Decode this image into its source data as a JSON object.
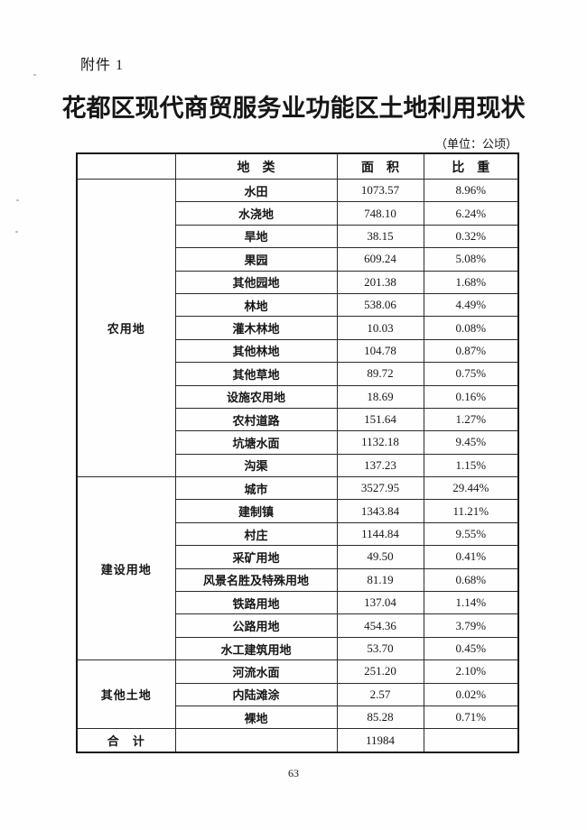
{
  "page": {
    "attachment_label": "附件 1",
    "title": "花都区现代商贸服务业功能区土地利用现状",
    "unit_note": "（单位：公顷）",
    "page_number": "63"
  },
  "table": {
    "header": {
      "corner": "",
      "category": "地　类",
      "area": "面　积",
      "share": "比　重"
    },
    "groups": [
      {
        "name": "农用地",
        "rows": [
          {
            "category": "水田",
            "area": "1073.57",
            "share": "8.96%"
          },
          {
            "category": "水浇地",
            "area": "748.10",
            "share": "6.24%"
          },
          {
            "category": "旱地",
            "area": "38.15",
            "share": "0.32%"
          },
          {
            "category": "果园",
            "area": "609.24",
            "share": "5.08%"
          },
          {
            "category": "其他园地",
            "area": "201.38",
            "share": "1.68%"
          },
          {
            "category": "林地",
            "area": "538.06",
            "share": "4.49%"
          },
          {
            "category": "灌木林地",
            "area": "10.03",
            "share": "0.08%"
          },
          {
            "category": "其他林地",
            "area": "104.78",
            "share": "0.87%"
          },
          {
            "category": "其他草地",
            "area": "89.72",
            "share": "0.75%"
          },
          {
            "category": "设施农用地",
            "area": "18.69",
            "share": "0.16%"
          },
          {
            "category": "农村道路",
            "area": "151.64",
            "share": "1.27%"
          },
          {
            "category": "坑塘水面",
            "area": "1132.18",
            "share": "9.45%"
          },
          {
            "category": "沟渠",
            "area": "137.23",
            "share": "1.15%"
          }
        ]
      },
      {
        "name": "建设用地",
        "rows": [
          {
            "category": "城市",
            "area": "3527.95",
            "share": "29.44%"
          },
          {
            "category": "建制镇",
            "area": "1343.84",
            "share": "11.21%"
          },
          {
            "category": "村庄",
            "area": "1144.84",
            "share": "9.55%"
          },
          {
            "category": "采矿用地",
            "area": "49.50",
            "share": "0.41%"
          },
          {
            "category": "风景名胜及特殊用地",
            "area": "81.19",
            "share": "0.68%"
          },
          {
            "category": "铁路用地",
            "area": "137.04",
            "share": "1.14%"
          },
          {
            "category": "公路用地",
            "area": "454.36",
            "share": "3.79%"
          },
          {
            "category": "水工建筑用地",
            "area": "53.70",
            "share": "0.45%"
          }
        ]
      },
      {
        "name": "其他土地",
        "rows": [
          {
            "category": "河流水面",
            "area": "251.20",
            "share": "2.10%"
          },
          {
            "category": "内陆滩涂",
            "area": "2.57",
            "share": "0.02%"
          },
          {
            "category": "裸地",
            "area": "85.28",
            "share": "0.71%"
          }
        ]
      }
    ],
    "total_row": {
      "label": "合　计",
      "category": "",
      "area": "11984",
      "share": ""
    }
  }
}
